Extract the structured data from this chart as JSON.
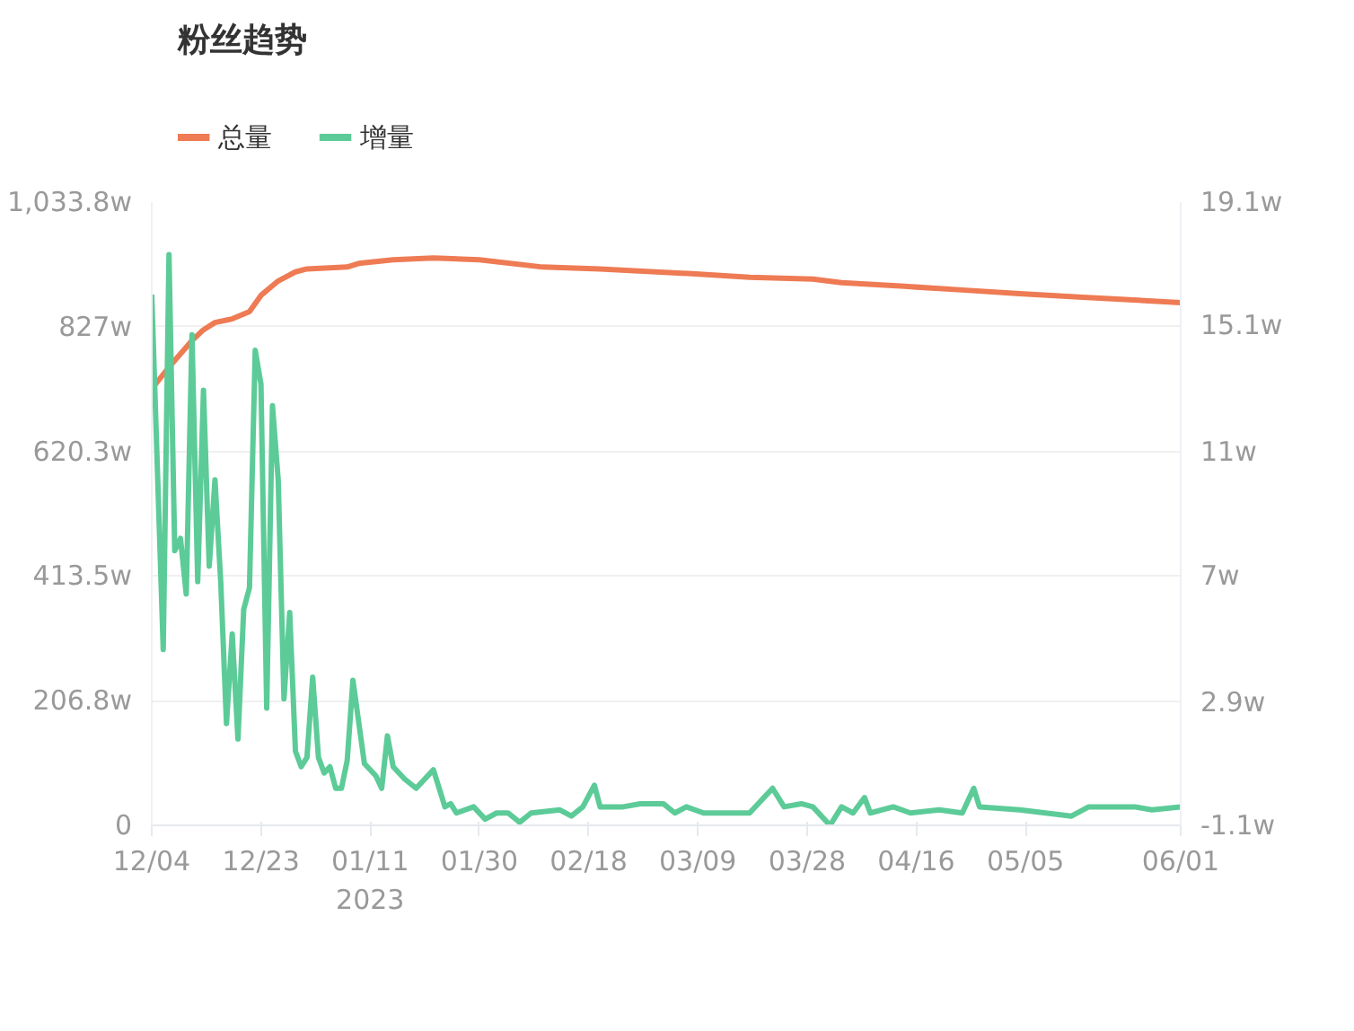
{
  "chart_data": {
    "type": "line",
    "title": "粉丝趋势",
    "legend": "top left",
    "grid": "y",
    "marker": "none",
    "line_style": "solid",
    "xlim": [
      "2022-12-04",
      "2023-06-01"
    ],
    "xticks": [
      {
        "value": "2022-12-04",
        "label": "12/04"
      },
      {
        "value": "2022-12-23",
        "label": "12/23"
      },
      {
        "value": "2023-01-11",
        "label": "01/11\n2023"
      },
      {
        "value": "2023-01-30",
        "label": "01/30"
      },
      {
        "value": "2023-02-18",
        "label": "02/18"
      },
      {
        "value": "2023-03-09",
        "label": "03/09"
      },
      {
        "value": "2023-03-28",
        "label": "03/28"
      },
      {
        "value": "2023-04-16",
        "label": "04/16"
      },
      {
        "value": "2023-05-05",
        "label": "05/05"
      },
      {
        "value": "2023-06-01",
        "label": "06/01"
      }
    ],
    "ylim": [
      0,
      1033.8
    ],
    "yticks": [
      {
        "value": 0,
        "label": "0"
      },
      {
        "value": 206.8,
        "label": "206.8w"
      },
      {
        "value": 413.5,
        "label": "413.5w"
      },
      {
        "value": 620.3,
        "label": "620.3w"
      },
      {
        "value": 827,
        "label": "827w"
      },
      {
        "value": 1033.8,
        "label": "1,033.8w"
      }
    ],
    "y2lim": [
      -1.1,
      19.1
    ],
    "y2ticks": [
      {
        "value": -1.1,
        "label": "-1.1w"
      },
      {
        "value": 2.9,
        "label": "2.9w"
      },
      {
        "value": 7,
        "label": "7w"
      },
      {
        "value": 11,
        "label": "11w"
      },
      {
        "value": 15.1,
        "label": "15.1w"
      },
      {
        "value": 19.1,
        "label": "19.1w"
      }
    ],
    "series": [
      {
        "name": "总量",
        "color": "#ee7b54",
        "x": [
          "2022-12-04",
          "2022-12-07",
          "2022-12-11",
          "2022-12-13",
          "2022-12-15",
          "2022-12-18",
          "2022-12-21",
          "2022-12-23",
          "2022-12-26",
          "2022-12-29",
          "2022-12-31",
          "2023-01-07",
          "2023-01-09",
          "2023-01-15",
          "2023-01-22",
          "2023-01-30",
          "2023-02-10",
          "2023-02-20",
          "2023-03-08",
          "2023-03-18",
          "2023-03-29",
          "2023-04-03",
          "2023-04-14",
          "2023-04-24",
          "2023-05-04",
          "2023-05-15",
          "2023-06-01"
        ],
        "values": [
          724,
          760,
          804,
          822,
          834,
          840,
          852,
          879,
          903,
          918,
          923,
          926,
          932,
          938,
          941,
          938,
          926,
          923,
          915,
          909,
          906,
          900,
          894,
          888,
          882,
          876,
          867
        ]
      },
      {
        "name": "增量",
        "color": "#5ccb98",
        "axis": "y2",
        "x": [
          "2022-12-04",
          "2022-12-06",
          "2022-12-07",
          "2022-12-08",
          "2022-12-09",
          "2022-12-10",
          "2022-12-11",
          "2022-12-12",
          "2022-12-13",
          "2022-12-14",
          "2022-12-15",
          "2022-12-16",
          "2022-12-17",
          "2022-12-18",
          "2022-12-19",
          "2022-12-20",
          "2022-12-21",
          "2022-12-22",
          "2022-12-23",
          "2022-12-24",
          "2022-12-25",
          "2022-12-26",
          "2022-12-27",
          "2022-12-28",
          "2022-12-29",
          "2022-12-30",
          "2022-12-31",
          "2023-01-01",
          "2023-01-02",
          "2023-01-03",
          "2023-01-04",
          "2023-01-05",
          "2023-01-06",
          "2023-01-07",
          "2023-01-08",
          "2023-01-10",
          "2023-01-12",
          "2023-01-13",
          "2023-01-14",
          "2023-01-15",
          "2023-01-17",
          "2023-01-19",
          "2023-01-22",
          "2023-01-24",
          "2023-01-25",
          "2023-01-26",
          "2023-01-29",
          "2023-01-31",
          "2023-02-02",
          "2023-02-04",
          "2023-02-06",
          "2023-02-08",
          "2023-02-13",
          "2023-02-15",
          "2023-02-17",
          "2023-02-19",
          "2023-02-20",
          "2023-02-24",
          "2023-02-27",
          "2023-03-03",
          "2023-03-05",
          "2023-03-07",
          "2023-03-10",
          "2023-03-13",
          "2023-03-18",
          "2023-03-21",
          "2023-03-22",
          "2023-03-24",
          "2023-03-27",
          "2023-03-29",
          "2023-03-31",
          "2023-04-01",
          "2023-04-03",
          "2023-04-05",
          "2023-04-07",
          "2023-04-08",
          "2023-04-12",
          "2023-04-15",
          "2023-04-20",
          "2023-04-24",
          "2023-04-26",
          "2023-04-27",
          "2023-05-04",
          "2023-05-13",
          "2023-05-16",
          "2023-05-24",
          "2023-05-27",
          "2023-06-01"
        ],
        "values": [
          16.1,
          4.6,
          17.4,
          7.8,
          8.2,
          6.4,
          14.8,
          6.8,
          13.0,
          7.3,
          10.1,
          6.8,
          2.2,
          5.1,
          1.7,
          5.9,
          6.6,
          14.3,
          13.2,
          2.7,
          12.5,
          10.1,
          3.0,
          5.8,
          1.3,
          0.8,
          1.1,
          3.7,
          1.1,
          0.6,
          0.8,
          0.1,
          0.1,
          1.0,
          3.6,
          0.9,
          0.5,
          0.1,
          1.8,
          0.8,
          0.4,
          0.1,
          0.7,
          -0.5,
          -0.4,
          -0.7,
          -0.5,
          -0.9,
          -0.7,
          -0.7,
          -1.0,
          -0.7,
          -0.6,
          -0.8,
          -0.5,
          0.2,
          -0.5,
          -0.5,
          -0.4,
          -0.4,
          -0.7,
          -0.5,
          -0.7,
          -0.7,
          -0.7,
          -0.1,
          0.1,
          -0.5,
          -0.4,
          -0.5,
          -0.9,
          -1.1,
          -0.5,
          -0.7,
          -0.2,
          -0.7,
          -0.5,
          -0.7,
          -0.6,
          -0.7,
          0.1,
          -0.5,
          -0.6,
          -0.8,
          -0.5,
          -0.5,
          -0.6,
          -0.5
        ]
      }
    ]
  }
}
